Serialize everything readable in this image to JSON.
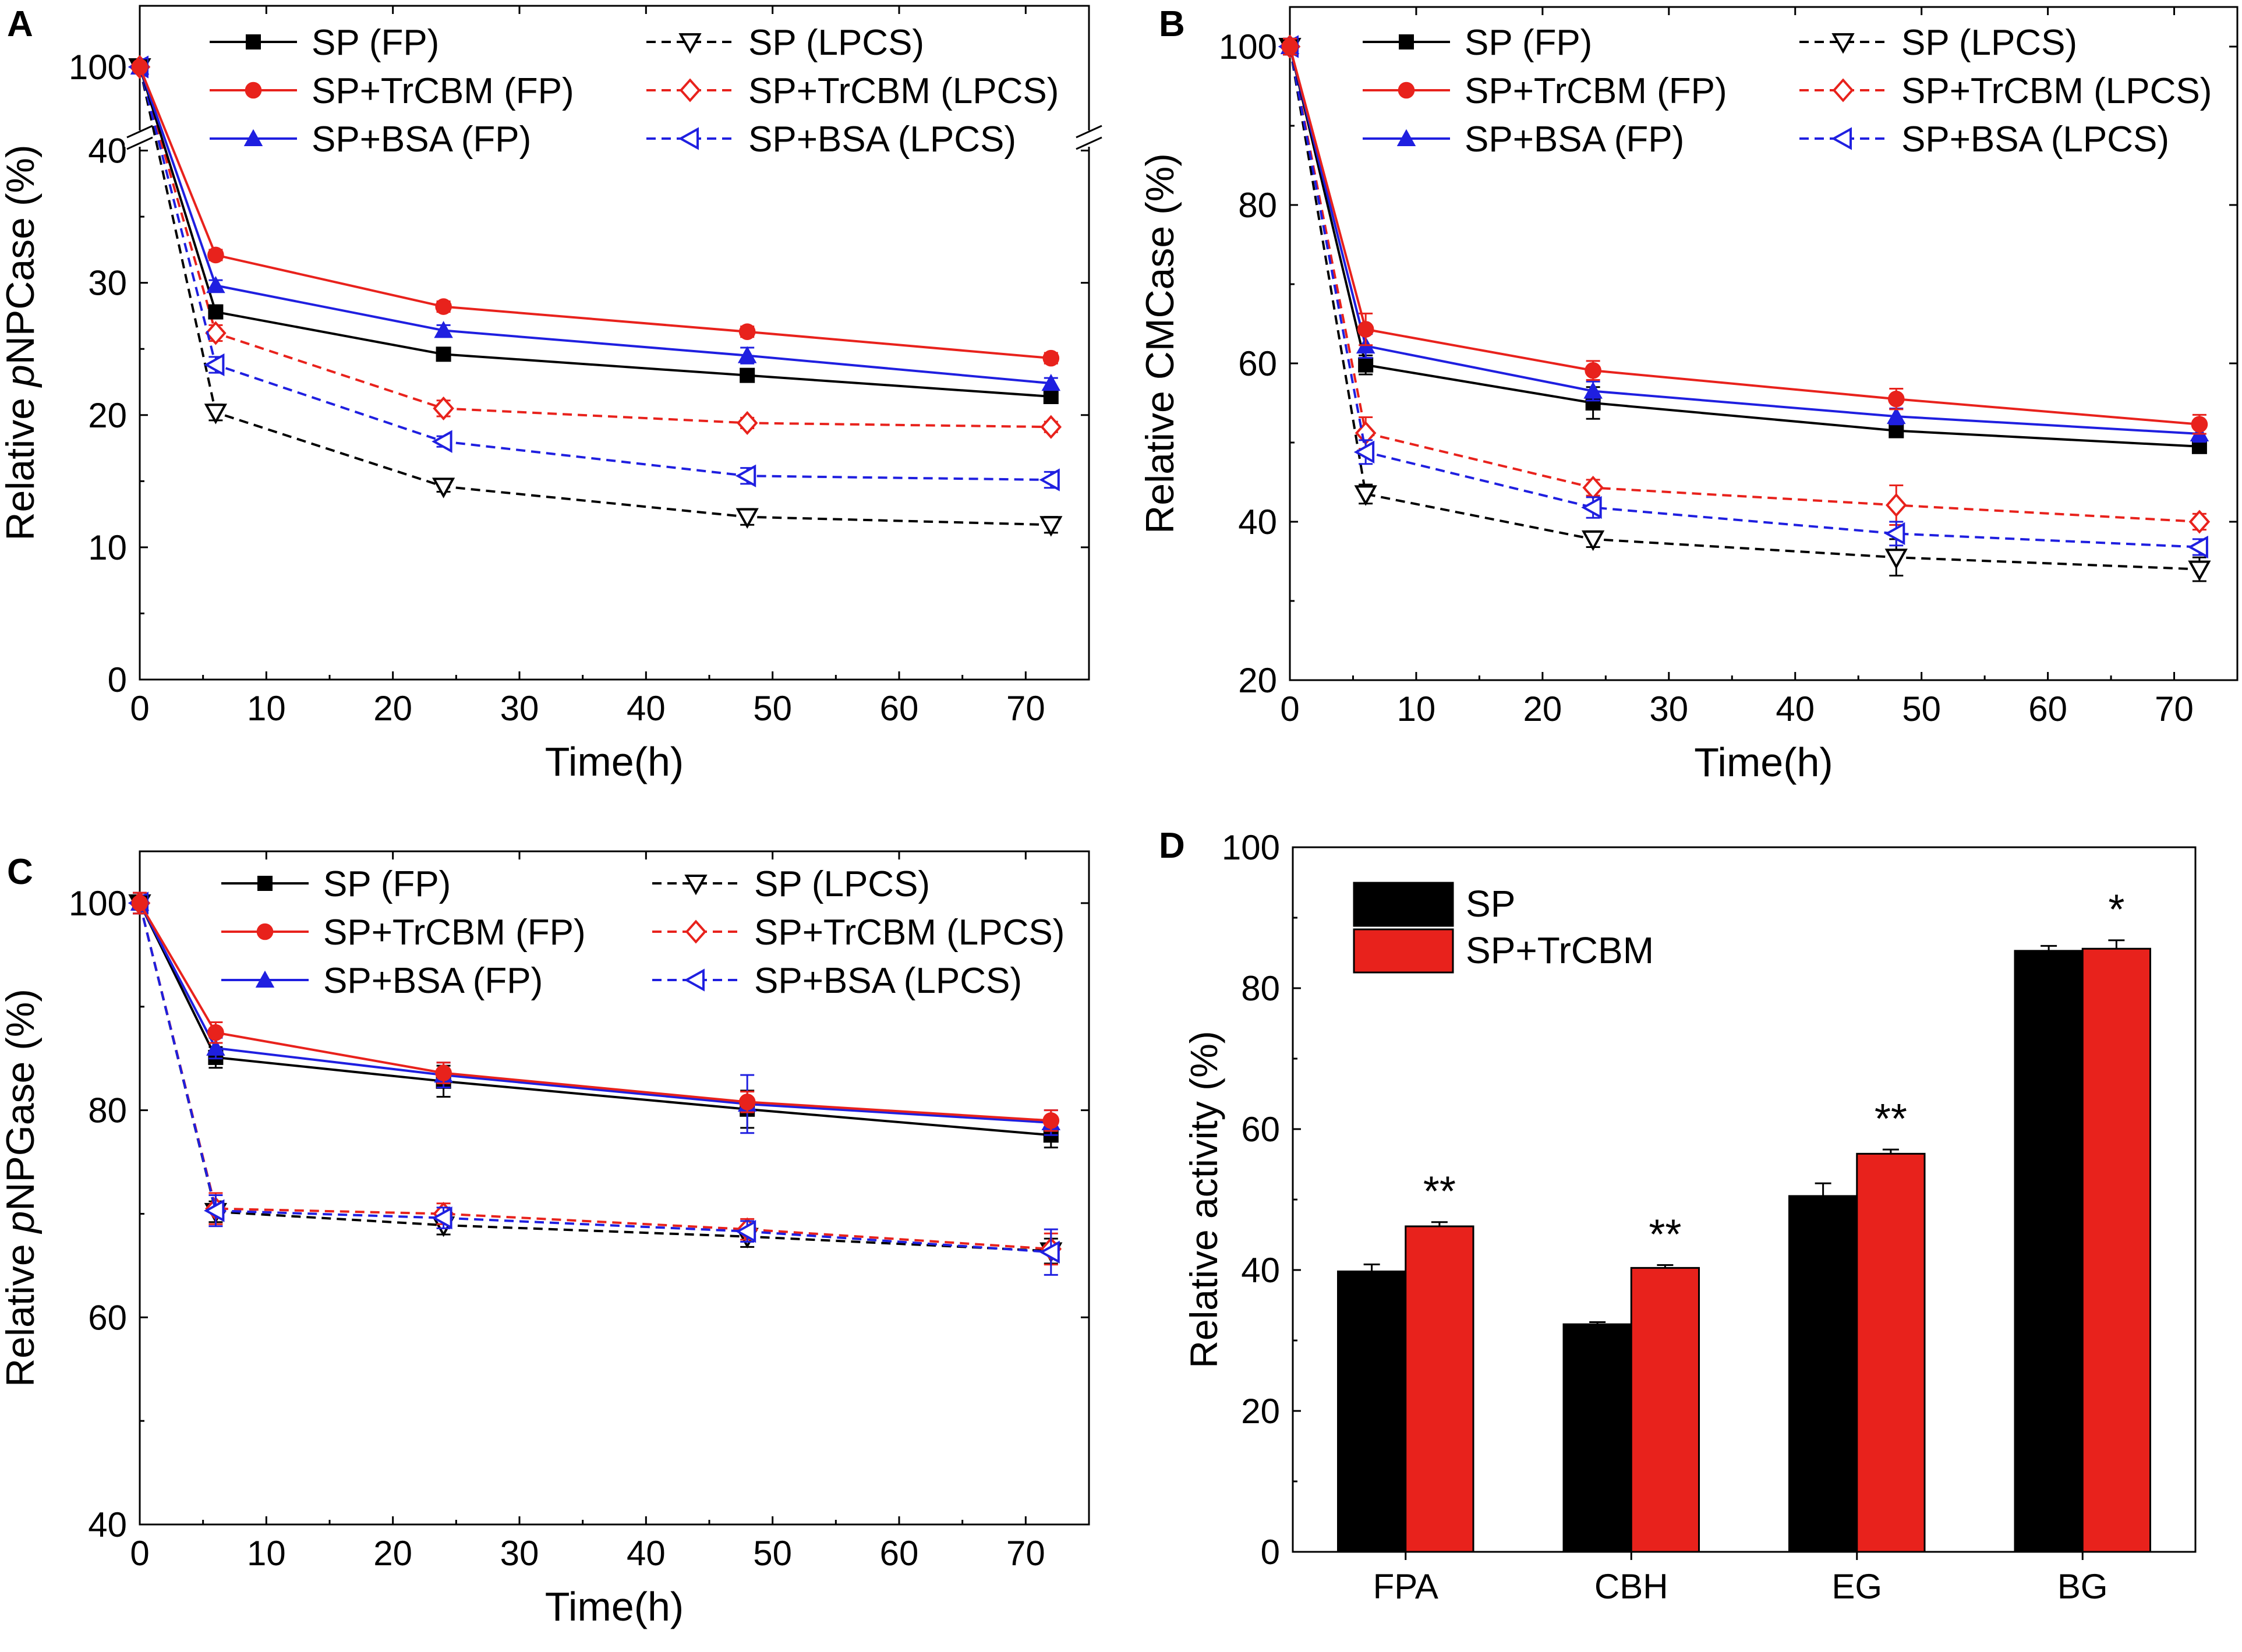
{
  "colors": {
    "black": "#000000",
    "red": "#e8221c",
    "blue": "#1f1fe0",
    "axis": "#000000"
  },
  "chart_data": [
    {
      "panel": "A",
      "type": "line",
      "ylabel_prefix": "Relative ",
      "ylabel_italic": "p",
      "ylabel_suffix": "NPCase (%)",
      "xlabel": "Time(h)",
      "xlim": [
        0,
        75
      ],
      "ylim": [
        0,
        45
      ],
      "axis_break": true,
      "break_top_value": 100,
      "xticks": [
        0,
        10,
        20,
        30,
        40,
        50,
        60,
        70
      ],
      "yticks": [
        0,
        10,
        20,
        30,
        40
      ],
      "x": [
        0,
        6,
        24,
        48,
        72
      ],
      "series": [
        {
          "name": "SP (FP)",
          "color": "black",
          "marker": "square",
          "dashed": false,
          "values": [
            100,
            27.8,
            24.6,
            23.0,
            21.4
          ],
          "err": [
            0.5,
            0.5,
            0.4,
            0.4,
            0.4
          ]
        },
        {
          "name": "SP+TrCBM (FP)",
          "color": "red",
          "marker": "circle",
          "dashed": false,
          "values": [
            100,
            32.1,
            28.2,
            26.3,
            24.3
          ],
          "err": [
            0.5,
            0.4,
            0.4,
            0.4,
            0.4
          ]
        },
        {
          "name": "SP+BSA (FP)",
          "color": "blue",
          "marker": "triangle-up",
          "dashed": false,
          "values": [
            100,
            29.8,
            26.4,
            24.5,
            22.4
          ],
          "err": [
            0.5,
            0.4,
            0.4,
            0.6,
            0.4
          ]
        },
        {
          "name": "SP (LPCS)",
          "color": "black",
          "marker": "triangle-down-open",
          "dashed": true,
          "values": [
            100,
            20.2,
            14.6,
            12.3,
            11.7
          ],
          "err": [
            0.5,
            0.6,
            0.4,
            0.6,
            0.6
          ]
        },
        {
          "name": "SP+TrCBM (LPCS)",
          "color": "red",
          "marker": "diamond-open",
          "dashed": true,
          "values": [
            100,
            26.2,
            20.5,
            19.4,
            19.1
          ],
          "err": [
            0.5,
            0.6,
            0.6,
            0.4,
            0.4
          ]
        },
        {
          "name": "SP+BSA (LPCS)",
          "color": "blue",
          "marker": "triangle-left-open",
          "dashed": true,
          "values": [
            100,
            23.8,
            18.0,
            15.4,
            15.1
          ],
          "err": [
            0.5,
            0.6,
            0.4,
            0.6,
            0.6
          ]
        }
      ]
    },
    {
      "panel": "B",
      "type": "line",
      "ylabel_prefix": "Relative CMCase (%)",
      "ylabel_italic": "",
      "ylabel_suffix": "",
      "xlabel": "Time(h)",
      "xlim": [
        0,
        75
      ],
      "ylim": [
        20,
        105
      ],
      "axis_break": false,
      "xticks": [
        0,
        10,
        20,
        30,
        40,
        50,
        60,
        70
      ],
      "yticks": [
        20,
        40,
        60,
        80,
        100
      ],
      "x": [
        0,
        6,
        24,
        48,
        72
      ],
      "series": [
        {
          "name": "SP (FP)",
          "color": "black",
          "marker": "square",
          "dashed": false,
          "values": [
            100,
            59.8,
            55.0,
            51.5,
            49.5
          ],
          "err": [
            1.0,
            1.2,
            2.0,
            0.8,
            0.8
          ]
        },
        {
          "name": "SP+TrCBM (FP)",
          "color": "red",
          "marker": "circle",
          "dashed": false,
          "values": [
            100,
            64.3,
            59.1,
            55.5,
            52.3
          ],
          "err": [
            1.0,
            2.0,
            1.2,
            1.3,
            1.2
          ]
        },
        {
          "name": "SP+BSA (FP)",
          "color": "blue",
          "marker": "triangle-up",
          "dashed": false,
          "values": [
            100,
            62.2,
            56.5,
            53.3,
            51.1
          ],
          "err": [
            1.0,
            1.5,
            1.2,
            1.0,
            1.0
          ]
        },
        {
          "name": "SP (LPCS)",
          "color": "black",
          "marker": "triangle-down-open",
          "dashed": true,
          "values": [
            100,
            43.5,
            37.8,
            35.5,
            34.0
          ],
          "err": [
            1.0,
            1.2,
            1.0,
            2.3,
            1.5
          ]
        },
        {
          "name": "SP+TrCBM (LPCS)",
          "color": "red",
          "marker": "diamond-open",
          "dashed": true,
          "values": [
            100,
            51.2,
            44.3,
            42.1,
            40.0
          ],
          "err": [
            1.0,
            2.0,
            1.0,
            2.5,
            1.0
          ]
        },
        {
          "name": "SP+BSA (LPCS)",
          "color": "blue",
          "marker": "triangle-left-open",
          "dashed": true,
          "values": [
            100,
            48.8,
            41.8,
            38.5,
            36.8
          ],
          "err": [
            1.0,
            1.5,
            1.3,
            1.5,
            1.0
          ]
        }
      ]
    },
    {
      "panel": "C",
      "type": "line",
      "ylabel_prefix": "Relative ",
      "ylabel_italic": "p",
      "ylabel_suffix": "NPGase (%)",
      "xlabel": "Time(h)",
      "xlim": [
        0,
        75
      ],
      "ylim": [
        40,
        105
      ],
      "axis_break": false,
      "xticks": [
        0,
        10,
        20,
        30,
        40,
        50,
        60,
        70
      ],
      "yticks": [
        40,
        60,
        80,
        100
      ],
      "x": [
        0,
        6,
        24,
        48,
        72
      ],
      "series": [
        {
          "name": "SP (FP)",
          "color": "black",
          "marker": "square",
          "dashed": false,
          "values": [
            100,
            85.1,
            82.8,
            80.1,
            77.6
          ],
          "err": [
            1.0,
            1.0,
            1.5,
            1.8,
            1.2
          ]
        },
        {
          "name": "SP+TrCBM (FP)",
          "color": "red",
          "marker": "circle",
          "dashed": false,
          "values": [
            100,
            87.5,
            83.6,
            80.8,
            79.0
          ],
          "err": [
            1.0,
            1.0,
            1.0,
            1.0,
            1.0
          ]
        },
        {
          "name": "SP+BSA (FP)",
          "color": "blue",
          "marker": "triangle-up",
          "dashed": false,
          "values": [
            100,
            86.0,
            83.4,
            80.6,
            78.8
          ],
          "err": [
            1.0,
            1.0,
            1.2,
            2.8,
            1.2
          ]
        },
        {
          "name": "SP (LPCS)",
          "color": "black",
          "marker": "triangle-down-open",
          "dashed": true,
          "values": [
            100,
            70.2,
            68.9,
            67.8,
            66.4
          ],
          "err": [
            1.0,
            1.0,
            0.9,
            1.0,
            1.2
          ]
        },
        {
          "name": "SP+TrCBM (LPCS)",
          "color": "red",
          "marker": "diamond-open",
          "dashed": true,
          "values": [
            100,
            70.5,
            70.0,
            68.5,
            66.6
          ],
          "err": [
            1.0,
            1.5,
            1.0,
            1.0,
            1.5
          ]
        },
        {
          "name": "SP+BSA (LPCS)",
          "color": "blue",
          "marker": "triangle-left-open",
          "dashed": true,
          "values": [
            100,
            70.3,
            69.6,
            68.3,
            66.3
          ],
          "err": [
            1.0,
            1.5,
            1.0,
            1.0,
            2.2
          ]
        }
      ]
    },
    {
      "panel": "D",
      "type": "bar",
      "ylabel": "Relative activity (%)",
      "xlabel": "",
      "ylim": [
        0,
        100
      ],
      "yticks": [
        0,
        20,
        40,
        60,
        80,
        100
      ],
      "categories": [
        "FPA",
        "CBH",
        "EG",
        "BG"
      ],
      "series": [
        {
          "name": "SP",
          "color": "black",
          "values": [
            39.8,
            32.3,
            50.5,
            85.3
          ],
          "err": [
            1.0,
            0.3,
            1.8,
            0.7
          ]
        },
        {
          "name": "SP+TrCBM",
          "color": "red",
          "values": [
            46.2,
            40.3,
            56.5,
            85.6
          ],
          "err": [
            0.6,
            0.4,
            0.6,
            1.2
          ]
        }
      ],
      "significance": [
        "**",
        "**",
        "**",
        "*"
      ]
    }
  ]
}
